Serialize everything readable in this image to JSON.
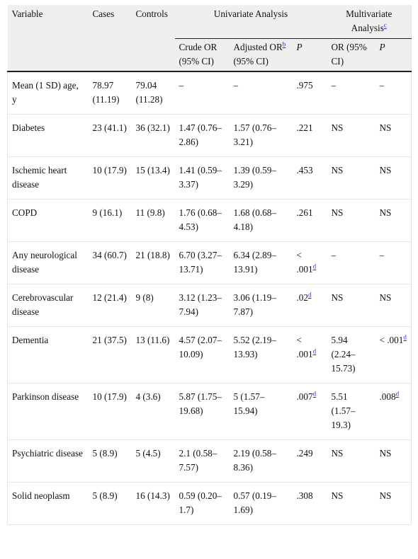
{
  "header": {
    "variable": "Variable",
    "cases": "Cases",
    "controls": "Controls",
    "univariate": "Univariate Analysis",
    "multivariate": "Multivariate Analysis",
    "multivariate_sup": "c",
    "crude_or": "Crude OR (95% CI)",
    "adjusted_or_pre": "Adjusted OR",
    "adjusted_or_sup": "b",
    "adjusted_or_post": " (95% CI)",
    "p_uni": "P",
    "or_multi": "OR (95% CI)",
    "p_multi": "P"
  },
  "rows": [
    {
      "variable": "Mean (1 SD) age, y",
      "cases": "78.97 (11.19)",
      "controls": "79.04 (11.28)",
      "crude": "–",
      "adjusted": "–",
      "p": ".975",
      "p_sup": "",
      "or": "–",
      "p2": "–",
      "p2_sup": ""
    },
    {
      "variable": "Diabetes",
      "cases": "23 (41.1)",
      "controls": "36 (32.1)",
      "crude": "1.47 (0.76–2.86)",
      "adjusted": "1.57 (0.76–3.21)",
      "p": ".221",
      "p_sup": "",
      "or": "NS",
      "p2": "NS",
      "p2_sup": ""
    },
    {
      "variable": "Ischemic heart disease",
      "cases": "10 (17.9)",
      "controls": "15 (13.4)",
      "crude": "1.41 (0.59–3.37)",
      "adjusted": "1.39 (0.59–3.29)",
      "p": ".453",
      "p_sup": "",
      "or": "NS",
      "p2": "NS",
      "p2_sup": ""
    },
    {
      "variable": "COPD",
      "cases": "9 (16.1)",
      "controls": "11 (9.8)",
      "crude": "1.76 (0.68–4.53)",
      "adjusted": "1.68 (0.68–4.18)",
      "p": ".261",
      "p_sup": "",
      "or": "NS",
      "p2": "NS",
      "p2_sup": ""
    },
    {
      "variable": "Any neurological disease",
      "cases": "34 (60.7)",
      "controls": "21 (18.8)",
      "crude": "6.70 (3.27–13.71)",
      "adjusted": "6.34 (2.89–13.91)",
      "p": "< .001",
      "p_sup": "d",
      "or": "–",
      "p2": "–",
      "p2_sup": ""
    },
    {
      "variable": "Cerebrovascular disease",
      "cases": "12 (21.4)",
      "controls": "9 (8)",
      "crude": "3.12 (1.23–7.94)",
      "adjusted": "3.06 (1.19–7.87)",
      "p": ".02",
      "p_sup": "d",
      "or": "NS",
      "p2": "NS",
      "p2_sup": ""
    },
    {
      "variable": "Dementia",
      "cases": "21 (37.5)",
      "controls": "13 (11.6)",
      "crude": "4.57 (2.07–10.09)",
      "adjusted": "5.52 (2.19–13.93)",
      "p": "< .001",
      "p_sup": "d",
      "or": "5.94 (2.24–15.73)",
      "p2": "< .001",
      "p2_sup": "d"
    },
    {
      "variable": "Parkinson disease",
      "cases": "10 (17.9)",
      "controls": "4 (3.6)",
      "crude": "5.87 (1.75–19.68)",
      "adjusted": "5 (1.57–15.94)",
      "p": ".007",
      "p_sup": "d",
      "or": "5.51 (1.57–19.3)",
      "p2": ".008",
      "p2_sup": "d"
    },
    {
      "variable": "Psychiatric disease",
      "cases": "5 (8.9)",
      "controls": "5 (4.5)",
      "crude": "2.1 (0.58–7.57)",
      "adjusted": "2.19 (0.58–8.36)",
      "p": ".249",
      "p_sup": "",
      "or": "NS",
      "p2": "NS",
      "p2_sup": ""
    },
    {
      "variable": "Solid neoplasm",
      "cases": "5 (8.9)",
      "controls": "16 (14.3)",
      "crude": "0.59 (0.20–1.7)",
      "adjusted": "0.57 (0.19–1.69)",
      "p": ".308",
      "p_sup": "",
      "or": "NS",
      "p2": "NS",
      "p2_sup": ""
    }
  ]
}
